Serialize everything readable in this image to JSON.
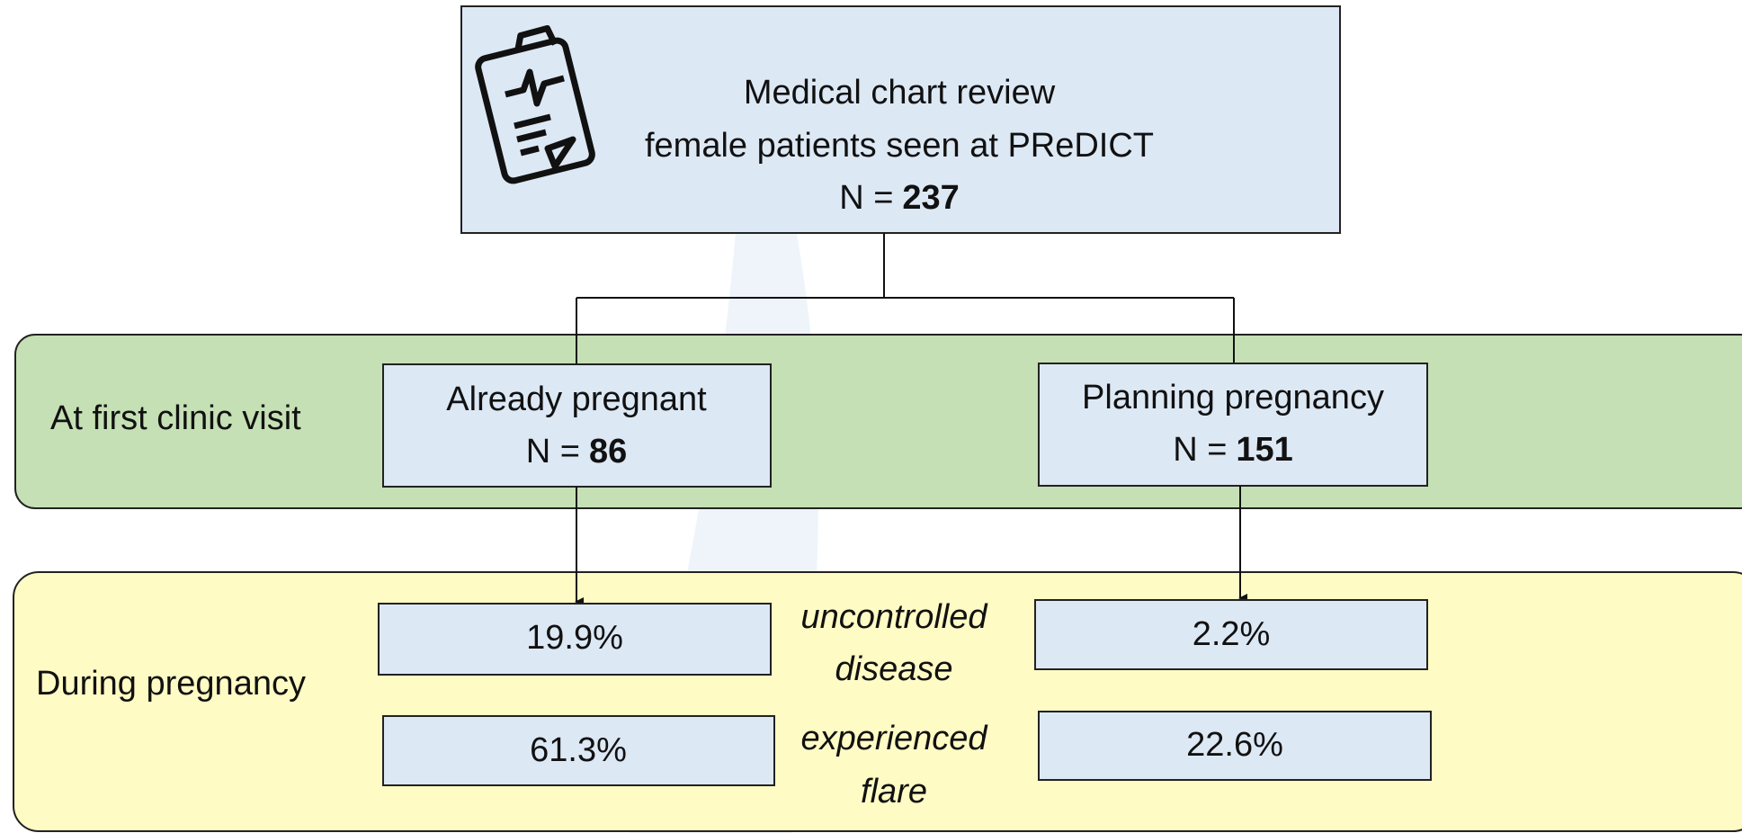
{
  "top": {
    "lines": [
      "Medical chart review",
      "female patients seen at PReDICT"
    ],
    "n_prefix": "N =",
    "n": "237"
  },
  "stages": [
    {
      "label": "At first clinic visit"
    },
    {
      "label": "During pregnancy"
    }
  ],
  "groups": [
    {
      "label": "Already pregnant",
      "n_prefix": "N =",
      "n": "86",
      "uncontrolled": "19.9%",
      "flare": "61.3%"
    },
    {
      "label": "Planning pregnancy",
      "n_prefix": "N =",
      "n": "151",
      "uncontrolled": "2.2%",
      "flare": "22.6%"
    }
  ],
  "outcomes": [
    {
      "lines": [
        "uncontrolled",
        "disease"
      ]
    },
    {
      "lines": [
        "experienced",
        "flare"
      ]
    }
  ]
}
